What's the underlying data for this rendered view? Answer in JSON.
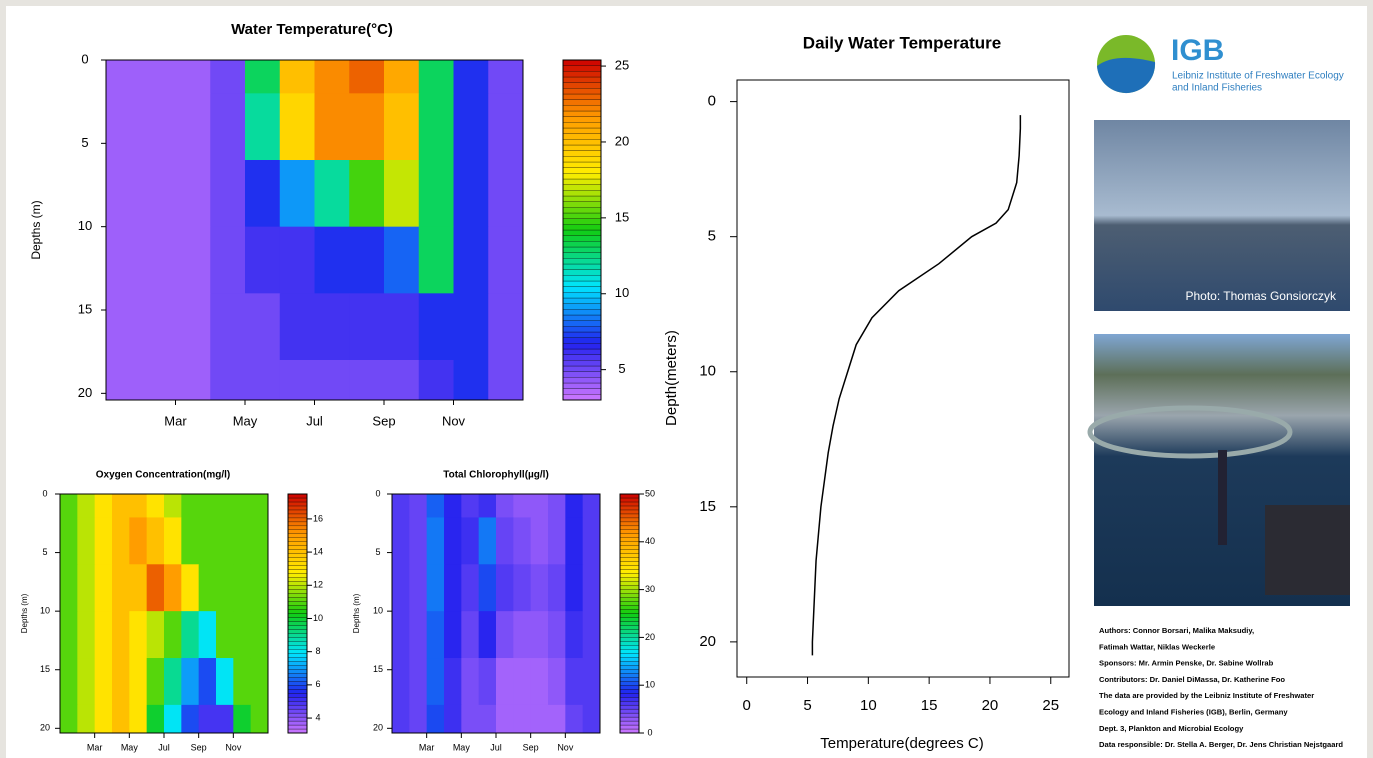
{
  "chart_data": [
    {
      "type": "heatmap",
      "title": "Water Temperature(°C)",
      "y_label": "Depths (m)",
      "x": [
        null,
        null,
        "Mar",
        null,
        "May",
        null,
        "Jul",
        null,
        "Sep",
        null,
        "Nov",
        null
      ],
      "y": [
        0,
        4,
        8,
        12,
        16,
        20
      ],
      "ylim": [
        0,
        20.4
      ],
      "yticks": [
        0,
        5,
        10,
        15,
        20
      ],
      "values": [
        [
          4,
          4,
          4,
          5,
          13,
          20,
          22,
          23,
          21,
          13,
          7,
          5
        ],
        [
          4,
          4,
          4,
          5,
          12,
          19,
          22,
          22,
          20,
          13,
          7,
          5
        ],
        [
          4,
          4,
          4,
          5,
          7,
          9,
          12,
          15,
          17,
          13,
          7,
          5
        ],
        [
          4,
          4,
          4,
          5,
          6,
          6,
          7,
          7,
          8,
          13,
          7,
          5
        ],
        [
          4,
          4,
          4,
          5,
          5,
          6,
          6,
          6,
          6,
          7,
          7,
          5
        ],
        [
          4,
          4,
          4,
          5,
          5,
          5,
          5,
          5,
          5,
          6,
          7,
          5
        ]
      ],
      "colorscale": [
        "#cc77ff",
        "#2222ee",
        "#00e5ff",
        "#11cc11",
        "#ffee00",
        "#ff9900",
        "#cc0000"
      ],
      "clim": [
        3,
        25.4
      ],
      "cticks": [
        5,
        10,
        15,
        20,
        25
      ]
    },
    {
      "type": "heatmap",
      "title": "Oxygen Concentration(mg/l)",
      "y_label": "Depths (m)",
      "x": [
        null,
        null,
        "Mar",
        null,
        "May",
        null,
        "Jul",
        null,
        "Sep",
        null,
        "Nov",
        null
      ],
      "y": [
        0,
        4,
        8,
        12,
        16,
        20
      ],
      "ylim": [
        0,
        20.4
      ],
      "yticks": [
        0,
        5,
        10,
        15,
        20
      ],
      "values": [
        [
          11,
          12,
          13,
          14,
          14,
          13,
          12,
          11,
          11,
          11,
          11,
          11
        ],
        [
          11,
          12,
          13,
          14,
          15,
          14,
          13,
          11,
          11,
          11,
          11,
          11
        ],
        [
          11,
          12,
          13,
          14,
          14,
          16,
          15,
          13,
          11,
          11,
          11,
          11
        ],
        [
          11,
          12,
          13,
          14,
          13,
          12,
          11,
          9,
          8,
          11,
          11,
          11
        ],
        [
          11,
          12,
          13,
          14,
          13,
          11,
          9,
          7,
          6,
          8,
          11,
          11
        ],
        [
          11,
          12,
          13,
          14,
          13,
          10,
          8,
          6,
          5,
          5,
          10,
          11
        ]
      ],
      "colorscale": [
        "#cc77ff",
        "#2222ee",
        "#00e5ff",
        "#11cc11",
        "#ffee00",
        "#ff9900",
        "#cc0000"
      ],
      "clim": [
        3.1,
        17.5
      ],
      "cticks": [
        4,
        6,
        8,
        10,
        12,
        14,
        16
      ]
    },
    {
      "type": "heatmap",
      "title": "Total Chlorophyll(µg/l)",
      "y_label": "Depths (m)",
      "x": [
        null,
        null,
        "Mar",
        null,
        "May",
        null,
        "Jul",
        null,
        "Sep",
        null,
        "Nov",
        null
      ],
      "y": [
        0,
        4,
        8,
        12,
        16,
        20
      ],
      "ylim": [
        0,
        20.4
      ],
      "yticks": [
        0,
        5,
        10,
        15,
        20
      ],
      "values": [
        [
          6,
          5,
          11,
          8,
          6,
          7,
          4,
          3,
          3,
          4,
          8,
          6
        ],
        [
          6,
          5,
          12,
          8,
          7,
          12,
          5,
          4,
          3,
          4,
          8,
          6
        ],
        [
          6,
          5,
          12,
          8,
          6,
          10,
          6,
          5,
          4,
          5,
          8,
          6
        ],
        [
          6,
          5,
          11,
          8,
          5,
          8,
          4,
          3,
          3,
          4,
          7,
          6
        ],
        [
          6,
          5,
          11,
          7,
          4,
          5,
          2,
          2,
          2,
          3,
          6,
          6
        ],
        [
          6,
          5,
          10,
          7,
          4,
          4,
          2,
          2,
          2,
          2,
          5,
          6
        ]
      ],
      "colorscale": [
        "#cc77ff",
        "#2222ee",
        "#00e5ff",
        "#11cc11",
        "#ffee00",
        "#ff9900",
        "#cc0000"
      ],
      "clim": [
        0,
        50
      ],
      "cticks": [
        0,
        10,
        20,
        30,
        40,
        50
      ]
    },
    {
      "type": "profile",
      "title": "Daily Water Temperature",
      "x_label": "Temperature(degrees C)",
      "y_label": "Depth(meters)",
      "depths": [
        0.5,
        1,
        2,
        3,
        4,
        4.5,
        5,
        6,
        7,
        8,
        9,
        10,
        11,
        12,
        13,
        14,
        15,
        16,
        17,
        18,
        19,
        20,
        20.5
      ],
      "values": [
        22.5,
        22.5,
        22.4,
        22.2,
        21.5,
        20.5,
        18.5,
        15.8,
        12.5,
        10.3,
        9,
        8.3,
        7.6,
        7.1,
        6.7,
        6.4,
        6.1,
        5.9,
        5.7,
        5.6,
        5.5,
        5.4,
        5.4
      ],
      "color": "#000000",
      "xlim": [
        -0.8,
        26.5
      ],
      "xticks": [
        0,
        5,
        10,
        15,
        20,
        25
      ],
      "ylim": [
        -0.8,
        21.3
      ],
      "yticks": [
        0,
        5,
        10,
        15,
        20
      ]
    }
  ],
  "logo": {
    "name": "IGB",
    "line1": "Leibniz Institute of Freshwater Ecology",
    "line2": "and Inland Fisheries"
  },
  "photo_caption": "Photo: Thomas Gonsiorczyk",
  "credits": [
    "Authors: Connor Borsari, Malika Maksudiy,",
    "Fatimah Wattar, Niklas Weckerle",
    "Sponsors: Mr. Armin Penske, Dr. Sabine Wollrab",
    "Contributors: Dr. Daniel DiMassa, Dr. Katherine Foo",
    "The data are provided by the Leibniz Institute of Freshwater",
    "Ecology and Inland Fisheries (IGB), Berlin, Germany",
    "Dept. 3, Plankton and Microbial Ecology",
    "Data responsible: Dr. Stella A. Berger, Dr. Jens Christian Nejstgaard"
  ]
}
